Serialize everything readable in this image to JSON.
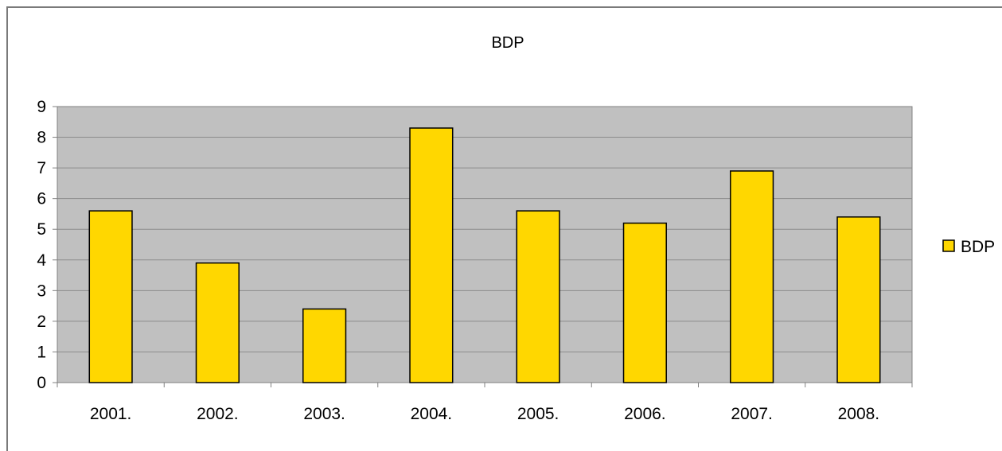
{
  "chart_data": {
    "type": "bar",
    "title": "BDP",
    "categories": [
      "2001.",
      "2002.",
      "2003.",
      "2004.",
      "2005.",
      "2006.",
      "2007.",
      "2008."
    ],
    "series": [
      {
        "name": "BDP",
        "values": [
          5.6,
          3.9,
          2.4,
          8.3,
          5.6,
          5.2,
          6.9,
          5.4
        ]
      }
    ],
    "yticks": [
      "0",
      "1",
      "2",
      "3",
      "4",
      "5",
      "6",
      "7",
      "8",
      "9"
    ],
    "ylim": [
      0,
      9
    ],
    "grid": true,
    "legend": "right",
    "colors": {
      "bar": "#FFD700",
      "plot_bg": "#C0C0C0",
      "grid": "#8c8c8c",
      "outline": "#000000"
    }
  }
}
